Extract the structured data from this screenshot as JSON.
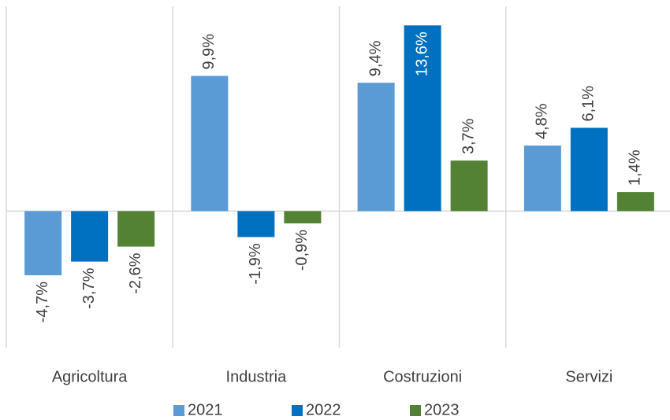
{
  "chart_data": {
    "type": "bar",
    "categories": [
      "Agricoltura",
      "Industria",
      "Costruzioni",
      "Servizi"
    ],
    "series": [
      {
        "name": "2021",
        "color": "#5b9bd5",
        "values": [
          -4.7,
          9.9,
          9.4,
          4.8
        ],
        "value_labels": [
          "-4,7%",
          "9,9%",
          "9,4%",
          "4,8%"
        ]
      },
      {
        "name": "2022",
        "color": "#0070c0",
        "values": [
          -3.7,
          -1.9,
          13.6,
          6.1
        ],
        "value_labels": [
          "-3,7%",
          "-1,9%",
          "13,6%",
          "6,1%"
        ]
      },
      {
        "name": "2023",
        "color": "#548235",
        "values": [
          -2.6,
          -0.9,
          3.7,
          1.4
        ],
        "value_labels": [
          "-2,6%",
          "-0,9%",
          "3,7%",
          "1,4%"
        ]
      }
    ],
    "ylim": [
      -10,
      15
    ],
    "legend": "bottom"
  }
}
